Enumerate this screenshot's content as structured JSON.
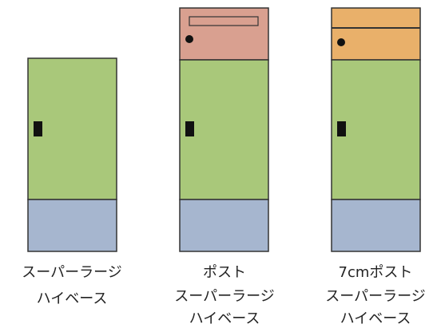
{
  "items": [
    {
      "lines": [
        "スーパーラージ",
        "ハイベース"
      ]
    },
    {
      "lines": [
        "ポスト",
        "スーパーラージ",
        "ハイベース"
      ]
    },
    {
      "lines": [
        "7cmポスト",
        "スーパーラージ",
        "ハイベース"
      ]
    }
  ]
}
